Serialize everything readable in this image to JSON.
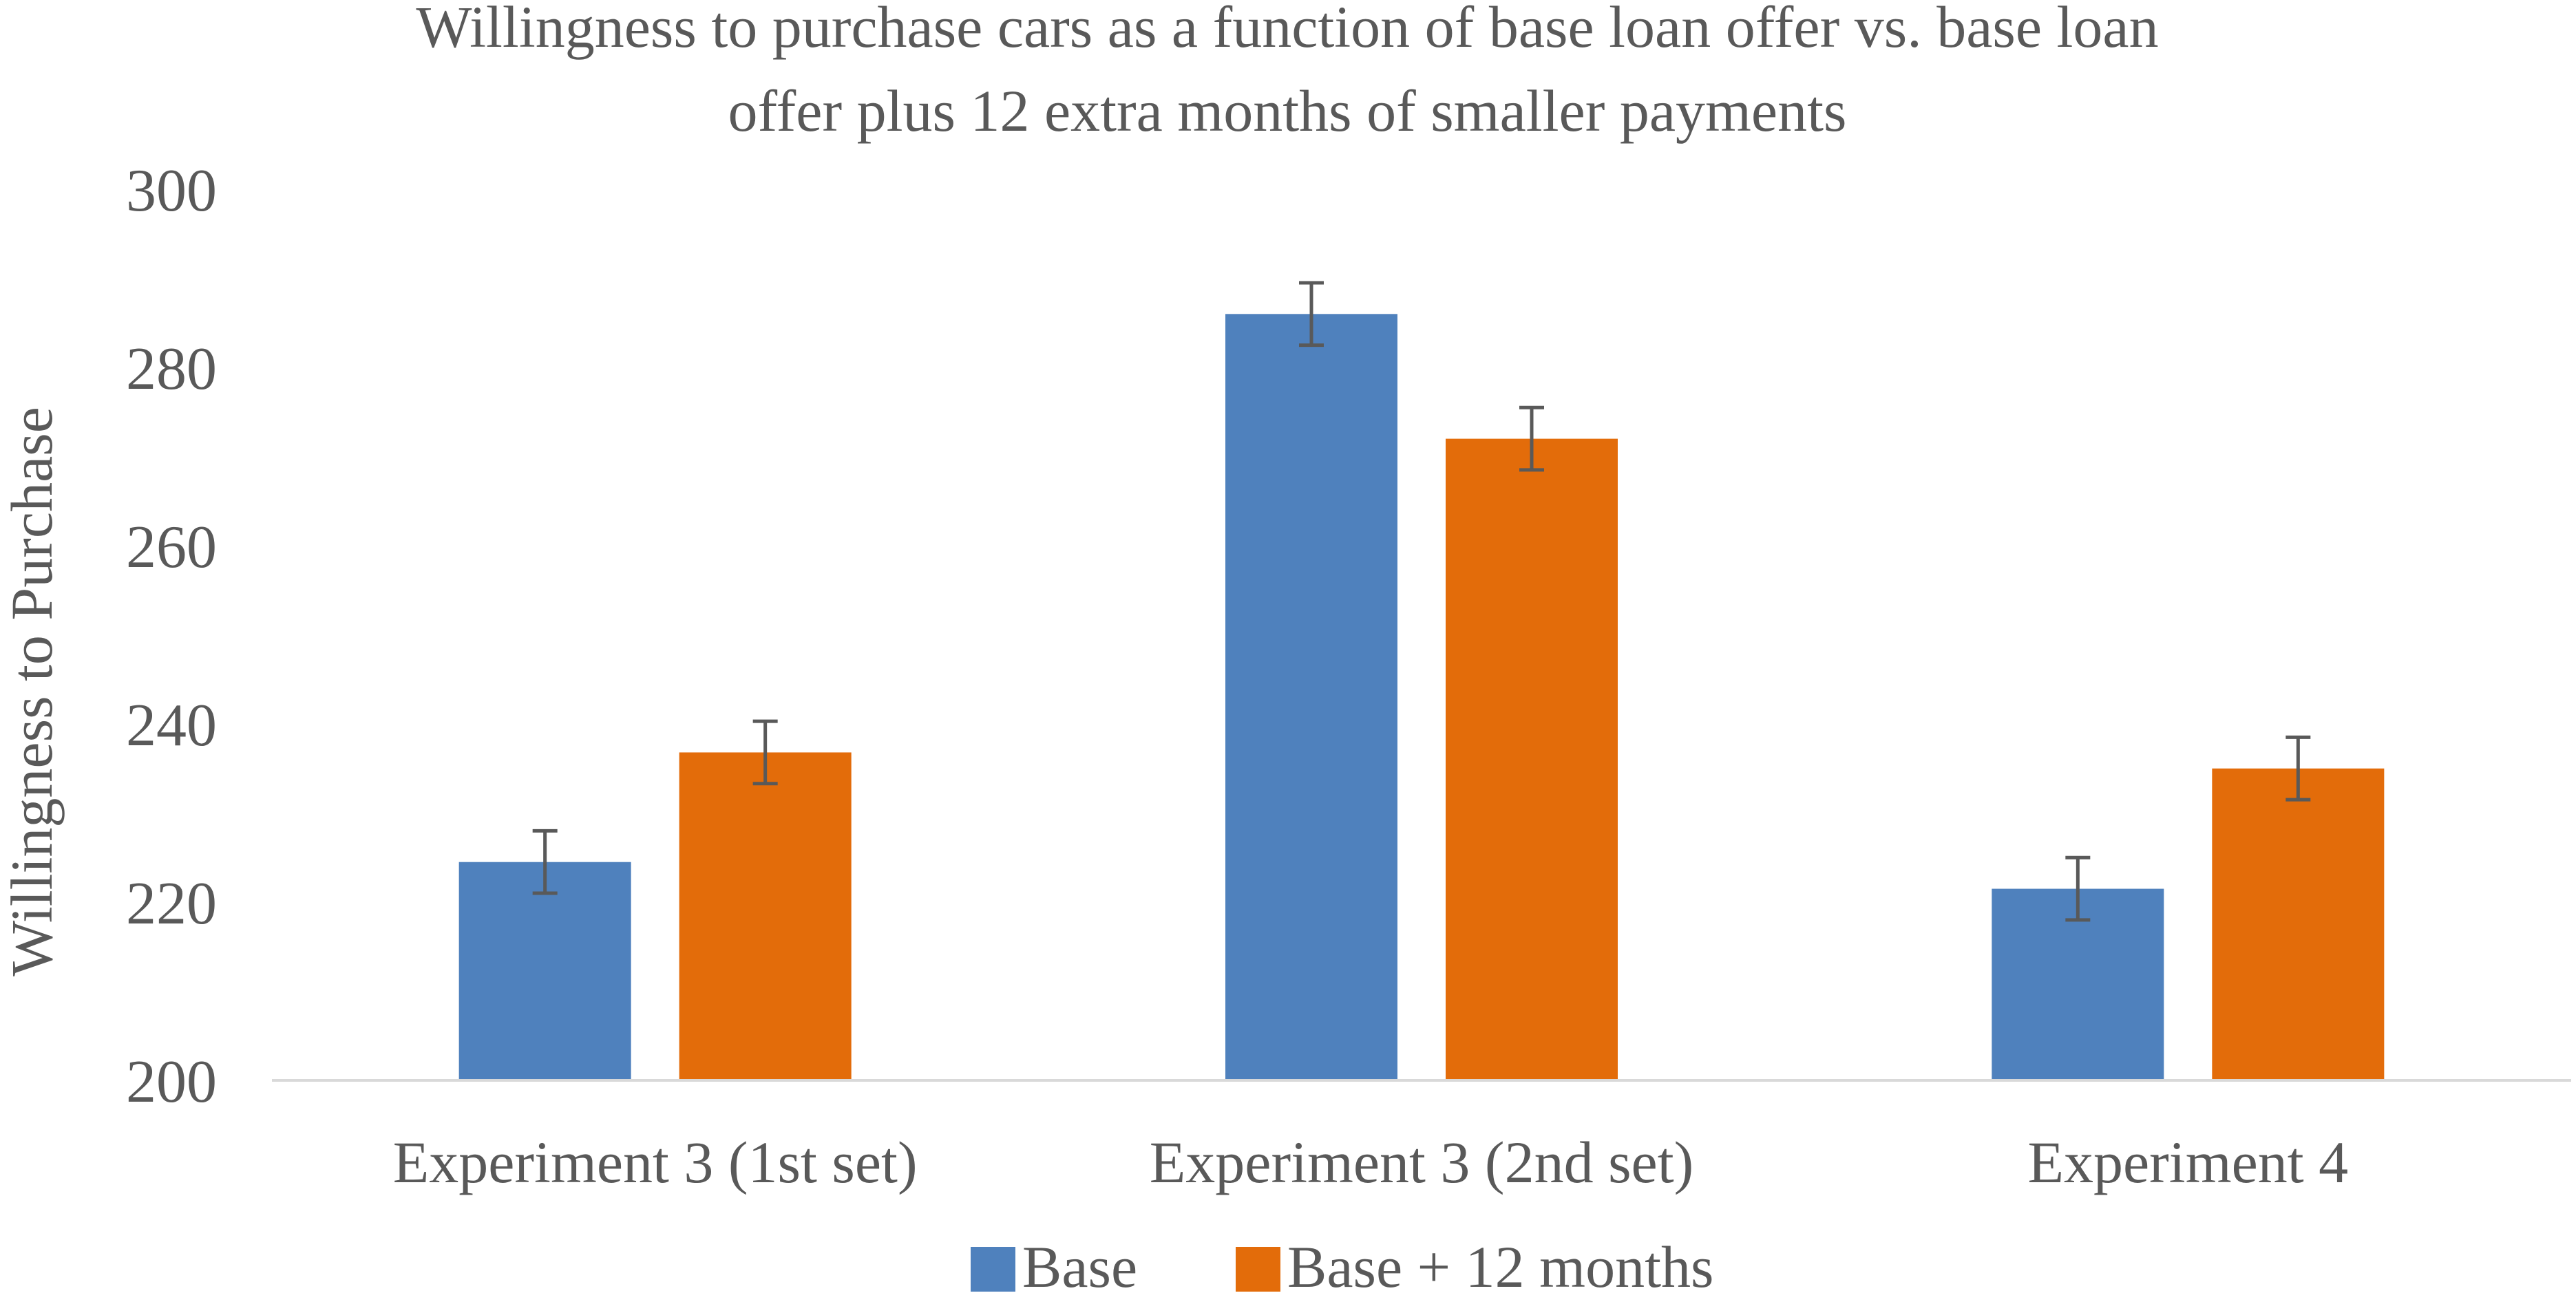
{
  "chart_data": {
    "type": "bar",
    "title_lines": [
      "Willingness to purchase cars as a function of base loan offer vs. base loan",
      "offer plus 12 extra months of smaller payments"
    ],
    "xlabel": "",
    "ylabel": "Willingness to Purchase",
    "ylim": [
      200,
      300
    ],
    "yticks": [
      200,
      220,
      240,
      260,
      280,
      300
    ],
    "grid": false,
    "legend_position": "bottom",
    "categories": [
      "Experiment 3 (1st set)",
      "Experiment 3 (2nd set)",
      "Experiment 4"
    ],
    "series": [
      {
        "name": "Base",
        "color": "#4f81bd",
        "values": [
          224.5,
          286,
          221.5
        ],
        "error": [
          3.5,
          3.5,
          3.5
        ]
      },
      {
        "name": "Base + 12 months",
        "color": "#e36c0a",
        "values": [
          236.8,
          272,
          235
        ],
        "error": [
          3.5,
          3.5,
          3.5
        ]
      }
    ]
  }
}
